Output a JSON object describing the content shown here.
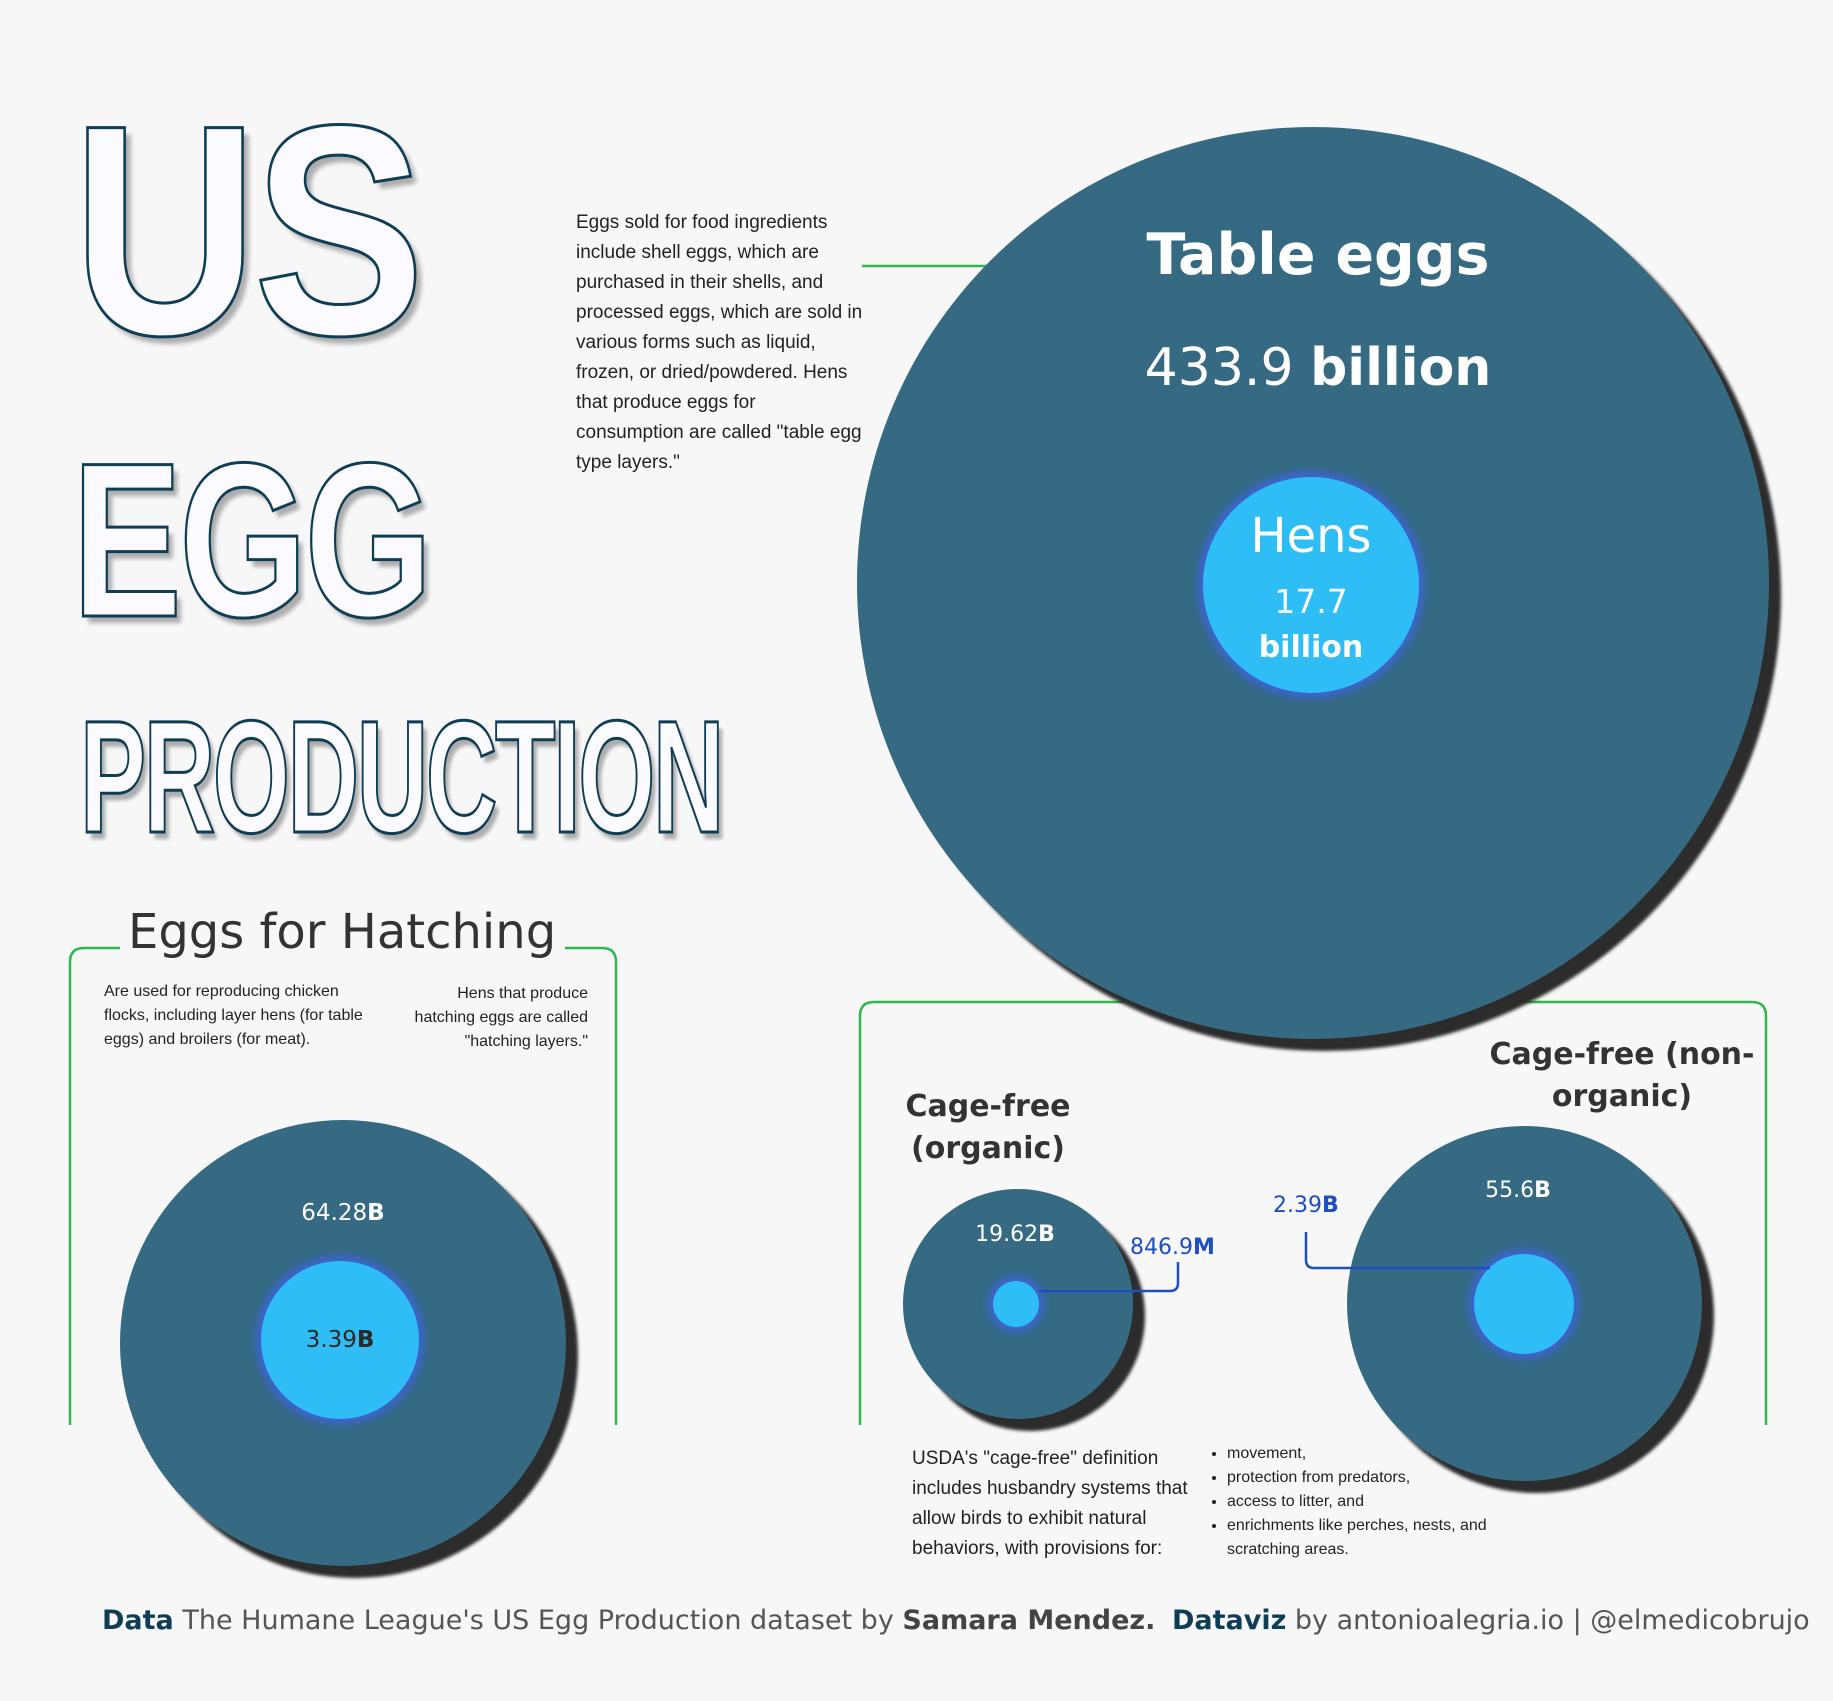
{
  "title": {
    "line1": "US",
    "line2": "EGG",
    "line3": "PRODUCTION"
  },
  "table_eggs": {
    "description": "Eggs sold for food ingredients include shell eggs, which are purchased in their shells, and processed eggs, which are sold in various forms such as liquid, frozen, or dried/powdered. Hens that produce eggs for consumption are called \"table egg type layers.\"",
    "heading": "Table eggs",
    "eggs_number": "433.9",
    "eggs_unit": "billion",
    "hens_label": "Hens",
    "hens_number": "17.7",
    "hens_unit": "billion"
  },
  "hatching": {
    "heading": "Eggs for Hatching",
    "note_left": "Are used for reproducing chicken flocks, including layer hens (for table eggs) and broilers (for meat).",
    "note_right": "Hens that produce hatching eggs are called \"hatching layers.\"",
    "eggs_number": "64.28",
    "eggs_unit": "B",
    "hens_number": "3.39",
    "hens_unit": "B"
  },
  "cage_free_organic": {
    "heading": "Cage-free (organic)",
    "eggs_number": "19.62",
    "eggs_unit": "B",
    "hens_number": "846.9",
    "hens_unit": "M"
  },
  "cage_free_non_organic": {
    "heading": "Cage-free (non-organic)",
    "eggs_number": "55.6",
    "eggs_unit": "B",
    "hens_number": "2.39",
    "hens_unit": "B"
  },
  "cage_free_definition": {
    "text": "USDA's \"cage-free\" definition includes husbandry systems that allow birds to exhibit natural behaviors, with provisions for:",
    "bullets": [
      "movement,",
      "protection from predators,",
      "access to litter, and",
      "enrichments like perches, nests, and scratching areas."
    ]
  },
  "footer": {
    "data_label": "Data",
    "data_text": "The Humane League's US Egg Production dataset by",
    "author": "Samara Mendez.",
    "dataviz_label": "Dataviz",
    "dataviz_text": "by antonioalegria.io | @elmedicobrujo"
  },
  "colors": {
    "background": "#f7f7f7",
    "eggs_circle": "#356a82",
    "hens_circle": "#2ebef5",
    "hens_glow": "#3f63e6",
    "bracket": "#2fb84f",
    "callout": "#1d4fc2",
    "title_stroke": "#0f3d56"
  },
  "chart_data": [
    {
      "type": "bubble",
      "title": "Table eggs",
      "series": [
        {
          "name": "Table eggs",
          "value": 433.9,
          "unit": "billion"
        },
        {
          "name": "Hens",
          "value": 17.7,
          "unit": "billion"
        }
      ]
    },
    {
      "type": "bubble",
      "title": "Eggs for Hatching",
      "series": [
        {
          "value": 64.28,
          "unit": "B"
        },
        {
          "value": 3.39,
          "unit": "B"
        }
      ]
    },
    {
      "type": "bubble",
      "title": "Cage-free (organic)",
      "series": [
        {
          "value": 19.62,
          "unit": "B"
        },
        {
          "value": 846.9,
          "unit": "M"
        }
      ]
    },
    {
      "type": "bubble",
      "title": "Cage-free (non-organic)",
      "series": [
        {
          "value": 55.6,
          "unit": "B"
        },
        {
          "value": 2.39,
          "unit": "B"
        }
      ]
    }
  ]
}
